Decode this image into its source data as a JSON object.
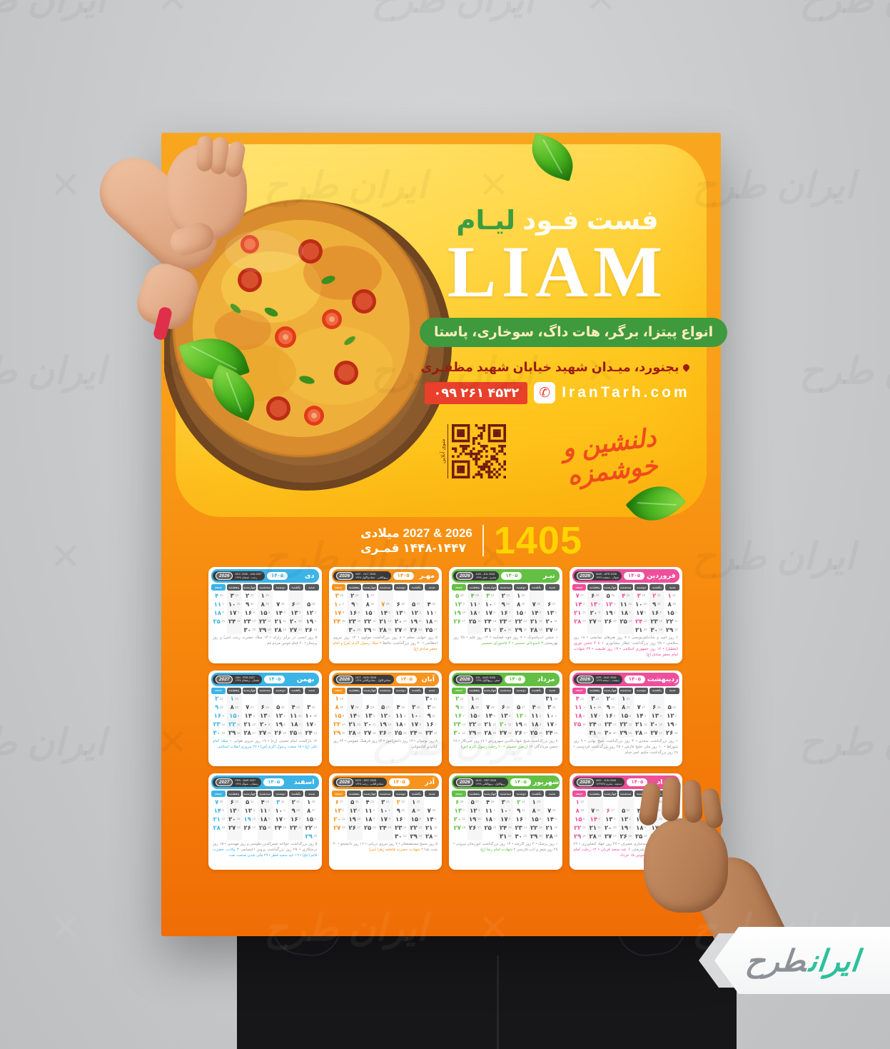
{
  "poster": {
    "brand_fa_white": "فست فـود",
    "brand_fa_green": "لیـام",
    "brand_en": "LIAM",
    "menu_line": "انواع پیتزا، برگر، هات داگ، سوخاری، پاستا",
    "address": "بجنورد، میـدان شهید خیابان شهید مظفـری",
    "phone": "۰۹۹ ۲۶۱ ۴۵۳۲",
    "phone_icon": "✆",
    "website": "IranTarh.com",
    "qr_label": "منوی آنلاین",
    "tagline": "دلنشین و خوشمزه",
    "year_main": "1405",
    "year_gregorian": "2026 & 2027 میلادی",
    "year_hijri": "۱۴۴۸-۱۴۴۷ قمـری"
  },
  "calendar": {
    "year_badge": "۱۴۰۵",
    "weekdays": [
      "شنبه",
      "یکشنبه",
      "دوشنبه",
      "سه‌شنبه",
      "چهارشنبه",
      "پنجشنبه",
      "جمعه"
    ],
    "months": [
      {
        "name": "فروردین",
        "color": "#ee4f9b",
        "year": "2026",
        "greg_range": "MAR - APR 2026",
        "hijri_range": "شوال - ذیقعده ۱۴۴۷",
        "start": 0,
        "days": 31,
        "greg_start": 21,
        "greg_month_len": 31,
        "holidays": [
          1,
          2,
          3,
          4,
          12,
          13,
          24
        ],
        "occasions": "۶ روز امید و شادباش‌نویسی • ۷ روز هنرهای نمایشی • ۱۸ روز سلامتی • ۲۵ روز بزرگداشت عطار نیشابوری",
        "occasions_holiday": "۱ تا ۴ جشن نوروز (تعطیل) • ۱۲ روز جمهوری اسلامی • ۱۳ روز طبیعت • ۲۴ شهادت امام جعفر صادق (ع)"
      },
      {
        "name": "اردیبهشت",
        "color": "#ee4f9b",
        "year": "2026",
        "greg_range": "APR - MAY 2026",
        "hijri_range": "ذیقعده - ذیحجه ۱۴۴۷",
        "start": 3,
        "days": 31,
        "greg_start": 21,
        "greg_month_len": 30,
        "holidays": [],
        "occasions": "۱ روز بزرگداشت سعدی • ۳ روز بزرگداشت شیخ بهایی • ۹ روز شوراها • ۱۰ روز ملی خلیج فارس • ۲۵ روز بزرگداشت فردوسی • ۲۸ روز بزرگداشت حکیم عمر خیام",
        "occasions_holiday": ""
      },
      {
        "name": "خرداد",
        "color": "#ee4f9b",
        "year": "2026",
        "greg_range": "MAY - JUN 2026",
        "hijri_range": "ذیحجه - محرم ۱۴۴۷/۴۸",
        "start": 6,
        "days": 31,
        "greg_start": 22,
        "greg_month_len": 31,
        "holidays": [
          6,
          14,
          15
        ],
        "occasions": "۱ روز بهره‌وری و بهینه‌سازی مصرف • ۲۷ روز جهاد کشاورزی • ۲۹ روز بزرگداشت دکتر شریعتی",
        "occasions_holiday": "۶ عید سعید قربان • ۱۴ رحلت امام خمینی (ره) • ۱۵ قیام خونین ۱۵ خرداد"
      },
      {
        "name": "تیـر",
        "color": "#63c044",
        "year": "2026",
        "greg_range": "JUN - JUL 2026",
        "hijri_range": "محرم - صفر ۱۴۴۸",
        "start": 2,
        "days": 31,
        "greg_start": 22,
        "greg_month_len": 30,
        "holidays": [
          3,
          4
        ],
        "occasions": "۱ جشن آب‌پاشونک • ۷ روز قوه قضاییه • ۱۴ روز قلم • ۲۵ روز بهزیستی",
        "occasions_holiday": "۳ تاسوعای حسینی • ۴ عاشورای حسینی"
      },
      {
        "name": "مرداد",
        "color": "#63c044",
        "year": "2026",
        "greg_range": "JUL - AUG 2026",
        "hijri_range": "صفر - ربیع‌الاول ۱۴۴۸",
        "start": 5,
        "days": 31,
        "greg_start": 23,
        "greg_month_len": 31,
        "holidays": [
          12,
          20
        ],
        "occasions": "۸ روز بزرگداشت شیخ شهاب‌الدین سهروردی • ۱۷ روز خبرنگار • ۲۸ جشن مردادگان",
        "occasions_holiday": "۱۲ اربعین حسینی • ۲۰ رحلت رسول اکرم (ص)"
      },
      {
        "name": "شهریور",
        "color": "#63c044",
        "year": "2026",
        "greg_range": "AUG - SEP 2026",
        "hijri_range": "ربیع‌الاول - ربیع‌الثانی ۱۴۴۸",
        "start": 1,
        "days": 31,
        "greg_start": 23,
        "greg_month_len": 31,
        "holidays": [
          2
        ],
        "occasions": "۱ روز پزشک • ۴ روز کارمند • ۱۳ روز بزرگداشت ابوریحان بیرونی • ۲۷ روز شعر و ادب فارسی",
        "occasions_holiday": "۲ شهادت امام رضا (ع)"
      },
      {
        "name": "مهـر",
        "color": "#f7941e",
        "year": "2026",
        "greg_range": "SEP - OCT 2026",
        "hijri_range": "ربیع‌الثانی - جمادی‌الاول ۱۴۴۸",
        "start": 4,
        "days": 30,
        "greg_start": 23,
        "greg_month_len": 30,
        "holidays": [
          7
        ],
        "occasions": "۵ روز جهانی معلم • ۸ روز بزرگداشت مولوی • ۱۳ روز نیروی انتظامی • ۲۰ روز بزرگداشت حافظ",
        "occasions_holiday": "۷ میلاد رسول اکرم (ص) و امام جعفر صادق (ع)"
      },
      {
        "name": "آبان",
        "color": "#f7941e",
        "year": "2026",
        "greg_range": "OCT - NOV 2026",
        "hijri_range": "جمادی‌الاول - جمادی‌الثانی ۱۴۴۸",
        "start": 6,
        "days": 30,
        "greg_start": 23,
        "greg_month_len": 31,
        "holidays": [],
        "occasions": "۸ روز نوجوان • ۱۳ روز دانش‌آموز • ۱۴ روز فرهنگ عمومی • ۲۴ روز کتاب و کتابخوانی",
        "occasions_holiday": ""
      },
      {
        "name": "آذر",
        "color": "#f7941e",
        "year": "2026",
        "greg_range": "NOV - DEC 2026",
        "hijri_range": "جمادی‌الثانی - رجب ۱۴۴۸",
        "start": 1,
        "days": 30,
        "greg_start": 22,
        "greg_month_len": 30,
        "holidays": [
          2
        ],
        "occasions": "۵ روز بسیج مستضعفان • ۷ روز نیروی دریایی • ۱۶ روز دانشجو • ۳۰ شب یلدا",
        "occasions_holiday": "۲ شهادت حضرت فاطمه زهرا (س)"
      },
      {
        "name": "دی",
        "color": "#3cb4e5",
        "year": "2026",
        "greg_range": "DEC 2026 - JAN 2027",
        "hijri_range": "رجب - شعبان ۱۴۴۸",
        "start": 3,
        "days": 30,
        "greg_start": 22,
        "greg_month_len": 31,
        "holidays": [],
        "occasions": "۵ روز ایمنی در برابر زلزله • ۱۳ میلاد حضرت زینب (س) و روز پرستار • ۲۰ قیام خونین مردم قم",
        "occasions_holiday": ""
      },
      {
        "name": "بهمن",
        "color": "#3cb4e5",
        "year": "2027",
        "greg_range": "JAN - FEB 2027",
        "hijri_range": "شعبان - رمضان ۱۴۴۸",
        "start": 5,
        "days": 30,
        "greg_start": 21,
        "greg_month_len": 31,
        "holidays": [
          1,
          15,
          22
        ],
        "occasions": "۱۲ بازگشت امام خمینی (ره) • ۱۹ روز نیروی هوایی",
        "occasions_holiday": "۱ میلاد امام علی (ع) • ۱۵ مبعث رسول اکرم (ص) • ۲۲ پیروزی انقلاب اسلامی"
      },
      {
        "name": "اسفند",
        "color": "#3cb4e5",
        "year": "2027",
        "greg_range": "FEB - MAR 2027",
        "hijri_range": "رمضان - شوال ۱۴۴۸",
        "start": 0,
        "days": 29,
        "greg_start": 20,
        "greg_month_len": 28,
        "holidays": [
          3,
          19,
          29
        ],
        "occasions": "۵ روز بزرگداشت خواجه نصیرالدین طوسی و روز مهندس • ۱۵ روز درختکاری • ۲۵ روز بزرگداشت پروین اعتصامی",
        "occasions_holiday": "۳ ولادت حضرت قائم (عج) • ۱۹ عید سعید فطر • ۲۹ ملی شدن صنعت نفت"
      }
    ]
  },
  "mockup": {
    "watermark_text": "ایران طرح",
    "logo_green": "ایران",
    "logo_gray": "طرح"
  }
}
